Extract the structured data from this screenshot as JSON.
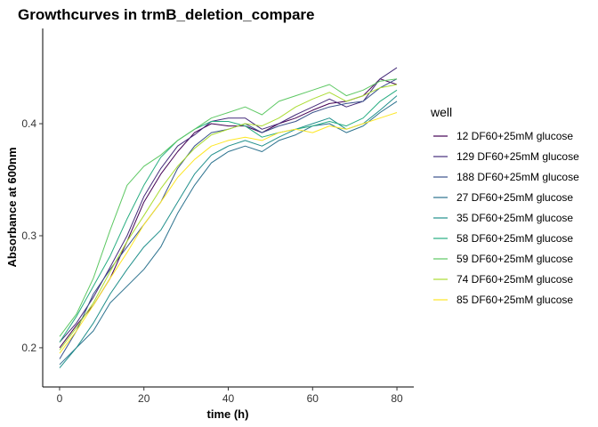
{
  "chart_data": {
    "type": "line",
    "title": "Growthcurves in trmB_deletion_compare",
    "xlabel": "time (h)",
    "ylabel": "Absorbance at 600nm",
    "xlim": [
      -4,
      84
    ],
    "ylim": [
      0.165,
      0.485
    ],
    "x_ticks": [
      0,
      20,
      40,
      60,
      80
    ],
    "y_ticks": [
      0.2,
      0.3,
      0.4
    ],
    "y_tick_labels": [
      "0.2",
      "0.3",
      "0.4"
    ],
    "grid": false,
    "legend": {
      "title": "well",
      "placement": "right"
    },
    "x": [
      0,
      4,
      8,
      12,
      16,
      20,
      24,
      28,
      32,
      36,
      40,
      44,
      48,
      52,
      56,
      60,
      64,
      68,
      72,
      76,
      80
    ],
    "series": [
      {
        "name": "12 DF60+25mM glucose",
        "color": "#440154",
        "values": [
          0.2,
          0.22,
          0.238,
          0.262,
          0.295,
          0.33,
          0.355,
          0.375,
          0.392,
          0.4,
          0.398,
          0.398,
          0.392,
          0.4,
          0.405,
          0.412,
          0.418,
          0.42,
          0.425,
          0.44,
          0.435
        ]
      },
      {
        "name": "129 DF60+25mM glucose",
        "color": "#472D7B",
        "values": [
          0.205,
          0.222,
          0.245,
          0.272,
          0.3,
          0.335,
          0.36,
          0.38,
          0.39,
          0.402,
          0.405,
          0.405,
          0.395,
          0.4,
          0.408,
          0.415,
          0.422,
          0.415,
          0.42,
          0.44,
          0.45
        ]
      },
      {
        "name": "188 DF60+25mM glucose",
        "color": "#3B528B",
        "values": [
          0.19,
          0.215,
          0.248,
          0.27,
          0.29,
          0.31,
          0.33,
          0.36,
          0.38,
          0.392,
          0.395,
          0.4,
          0.392,
          0.398,
          0.402,
          0.41,
          0.415,
          0.418,
          0.42,
          0.432,
          0.44
        ]
      },
      {
        "name": "27 DF60+25mM glucose",
        "color": "#2C728E",
        "values": [
          0.185,
          0.2,
          0.215,
          0.24,
          0.255,
          0.27,
          0.29,
          0.32,
          0.345,
          0.365,
          0.375,
          0.38,
          0.375,
          0.385,
          0.39,
          0.398,
          0.4,
          0.392,
          0.398,
          0.41,
          0.42
        ]
      },
      {
        "name": "35 DF60+25mM glucose",
        "color": "#21908C",
        "values": [
          0.182,
          0.2,
          0.222,
          0.248,
          0.27,
          0.29,
          0.305,
          0.33,
          0.355,
          0.372,
          0.38,
          0.385,
          0.38,
          0.388,
          0.395,
          0.4,
          0.405,
          0.395,
          0.4,
          0.412,
          0.425
        ]
      },
      {
        "name": "58 DF60+25mM glucose",
        "color": "#27AD81",
        "values": [
          0.205,
          0.228,
          0.255,
          0.282,
          0.315,
          0.345,
          0.37,
          0.385,
          0.395,
          0.402,
          0.402,
          0.398,
          0.388,
          0.392,
          0.395,
          0.398,
          0.402,
          0.398,
          0.405,
          0.42,
          0.43
        ]
      },
      {
        "name": "59 DF60+25mM glucose",
        "color": "#5DC863",
        "values": [
          0.21,
          0.23,
          0.262,
          0.305,
          0.345,
          0.362,
          0.372,
          0.385,
          0.395,
          0.405,
          0.41,
          0.415,
          0.408,
          0.42,
          0.425,
          0.43,
          0.435,
          0.425,
          0.43,
          0.438,
          0.44
        ]
      },
      {
        "name": "74 DF60+25mM glucose",
        "color": "#AADC32",
        "values": [
          0.198,
          0.218,
          0.24,
          0.268,
          0.295,
          0.318,
          0.342,
          0.362,
          0.378,
          0.39,
          0.395,
          0.4,
          0.398,
          0.405,
          0.415,
          0.422,
          0.428,
          0.42,
          0.425,
          0.432,
          0.435
        ]
      },
      {
        "name": "85 DF60+25mM glucose",
        "color": "#FDE725",
        "values": [
          0.195,
          0.215,
          0.238,
          0.262,
          0.285,
          0.31,
          0.33,
          0.352,
          0.368,
          0.38,
          0.385,
          0.388,
          0.385,
          0.392,
          0.395,
          0.392,
          0.398,
          0.395,
          0.4,
          0.405,
          0.41
        ]
      }
    ]
  }
}
